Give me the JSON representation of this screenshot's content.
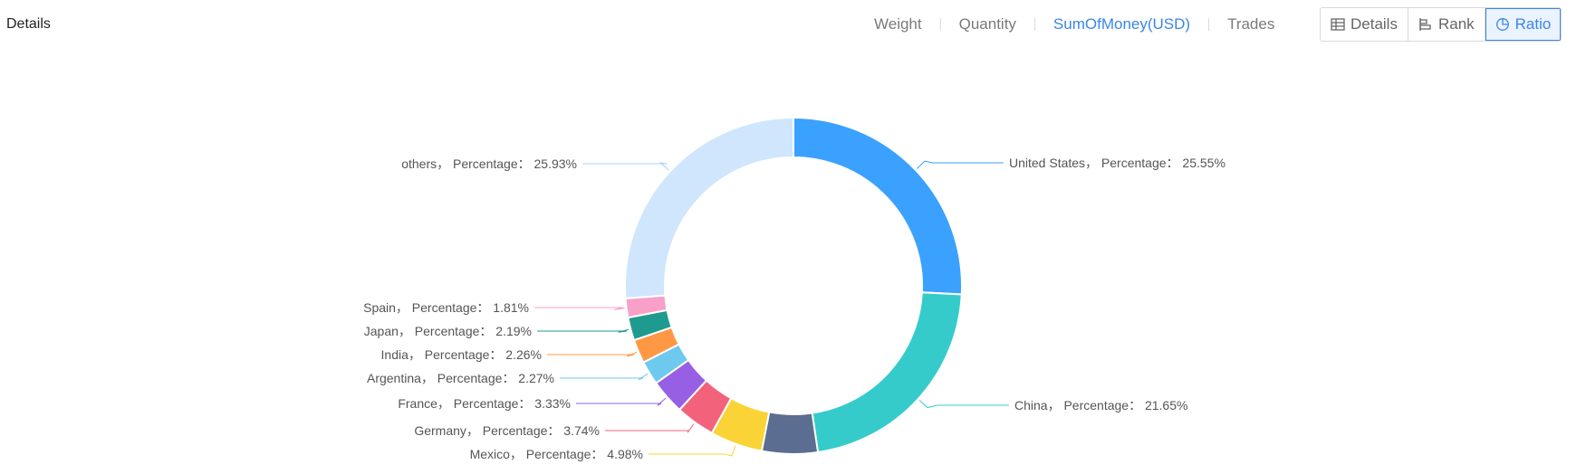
{
  "header": {
    "title": "Details"
  },
  "metric_tabs": [
    {
      "label": "Weight",
      "active": false
    },
    {
      "label": "Quantity",
      "active": false
    },
    {
      "label": "SumOfMoney(USD)",
      "active": true
    },
    {
      "label": "Trades",
      "active": false
    }
  ],
  "view_buttons": [
    {
      "label": "Details",
      "icon": "table-icon",
      "active": false
    },
    {
      "label": "Rank",
      "icon": "rank-bars-icon",
      "active": false
    },
    {
      "label": "Ratio",
      "icon": "pie-icon",
      "active": true
    }
  ],
  "colors": {
    "accent": "#3a86e8"
  },
  "chart_data": {
    "type": "pie",
    "variant": "donut",
    "title": "",
    "label_format": "{name}， Percentage： {value}%",
    "slices": [
      {
        "name": "United States",
        "value": 25.55,
        "color": "#3ba1ff",
        "label": "United States， Percentage： 25.55%"
      },
      {
        "name": "China",
        "value": 21.65,
        "color": "#36cbcb",
        "label": "China， Percentage： 21.65%"
      },
      {
        "name": "",
        "value": 5.29,
        "color": "#5b6d91",
        "label": ""
      },
      {
        "name": "Mexico",
        "value": 4.98,
        "color": "#fad337",
        "label": "Mexico， Percentage： 4.98%"
      },
      {
        "name": "Germany",
        "value": 3.74,
        "color": "#f2637b",
        "label": "Germany， Percentage： 3.74%"
      },
      {
        "name": "France",
        "value": 3.33,
        "color": "#975fe4",
        "label": "France， Percentage： 3.33%"
      },
      {
        "name": "Argentina",
        "value": 2.27,
        "color": "#6ec9ef",
        "label": "Argentina， Percentage： 2.27%"
      },
      {
        "name": "India",
        "value": 2.26,
        "color": "#ff9845",
        "label": "India， Percentage： 2.26%"
      },
      {
        "name": "Japan",
        "value": 2.19,
        "color": "#1f9a8f",
        "label": "Japan， Percentage： 2.19%"
      },
      {
        "name": "Spain",
        "value": 1.81,
        "color": "#f9a0c9",
        "label": "Spain， Percentage： 1.81%"
      },
      {
        "name": "others",
        "value": 25.93,
        "color": "#cfe6fd",
        "label": "others， Percentage： 25.93%"
      }
    ]
  }
}
